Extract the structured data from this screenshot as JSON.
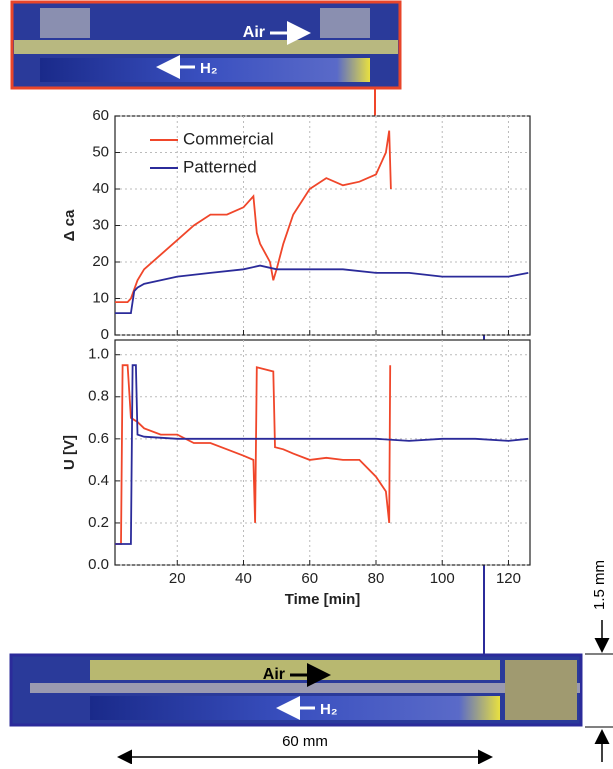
{
  "chart_data": [
    {
      "type": "line",
      "ylabel": "Δ ca",
      "xlim": [
        1.2,
        126.5
      ],
      "ylim": [
        0,
        60
      ],
      "yticks": [
        0,
        10,
        20,
        30,
        40,
        50,
        60
      ],
      "xticks": [
        20,
        40,
        60,
        80,
        100,
        120
      ],
      "xtick_labels": false,
      "grid": true,
      "legend": "upper left",
      "series": [
        {
          "name": "Commercial",
          "color": "#f0462a",
          "x": [
            1.2,
            5,
            6,
            8,
            10,
            15,
            20,
            25,
            30,
            35,
            40,
            43,
            44,
            45,
            48,
            49,
            50,
            52,
            55,
            60,
            65,
            70,
            75,
            80,
            83,
            84,
            84.5
          ],
          "values": [
            9,
            9,
            10,
            15,
            18,
            22,
            26,
            30,
            33,
            33,
            35,
            38,
            28,
            25,
            20,
            15,
            18,
            25,
            33,
            40,
            43,
            41,
            42,
            44,
            50,
            56,
            40
          ]
        },
        {
          "name": "Patterned",
          "color": "#2b2b9a",
          "x": [
            1.2,
            5,
            6,
            7,
            8,
            10,
            15,
            20,
            30,
            40,
            45,
            50,
            60,
            70,
            80,
            90,
            100,
            110,
            120,
            126
          ],
          "values": [
            6,
            6,
            6,
            12,
            13,
            14,
            15,
            16,
            17,
            18,
            19,
            18,
            18,
            18,
            17,
            17,
            16,
            16,
            16,
            17
          ]
        }
      ]
    },
    {
      "type": "line",
      "ylabel": "U [V]",
      "xlabel": "Time [min]",
      "xlim": [
        1.2,
        126.5
      ],
      "ylim": [
        0,
        1.07
      ],
      "yticks": [
        {
          "value": 0,
          "label": "0.0"
        },
        0.2,
        0.4,
        0.6,
        0.8,
        {
          "value": 1,
          "label": "1.0"
        }
      ],
      "xticks": [
        20,
        40,
        60,
        80,
        100,
        120
      ],
      "grid": true,
      "series": [
        {
          "name": "Commercial",
          "color": "#f0462a",
          "x": [
            1.2,
            3,
            3.5,
            5,
            6,
            8,
            10,
            15,
            20,
            25,
            30,
            35,
            40,
            43,
            43.5,
            44,
            49,
            49.5,
            52,
            55,
            60,
            65,
            70,
            75,
            80,
            83,
            84,
            84.3
          ],
          "values": [
            0.1,
            0.1,
            0.95,
            0.95,
            0.7,
            0.68,
            0.65,
            0.62,
            0.62,
            0.58,
            0.58,
            0.55,
            0.52,
            0.5,
            0.2,
            0.94,
            0.92,
            0.56,
            0.55,
            0.53,
            0.5,
            0.51,
            0.5,
            0.5,
            0.42,
            0.35,
            0.2,
            0.95
          ]
        },
        {
          "name": "Patterned",
          "color": "#2b2b9a",
          "x": [
            1.2,
            6,
            6.5,
            7.5,
            8,
            10,
            20,
            40,
            60,
            80,
            90,
            100,
            110,
            120,
            126
          ],
          "values": [
            0.1,
            0.1,
            0.95,
            0.95,
            0.62,
            0.61,
            0.6,
            0.6,
            0.6,
            0.6,
            0.59,
            0.6,
            0.6,
            0.59,
            0.6
          ]
        }
      ]
    }
  ],
  "images": {
    "top": {
      "air": "Air",
      "h2": "H₂"
    },
    "bottom": {
      "air": "Air",
      "h2": "H₂"
    }
  },
  "annotations": {
    "thickness": "1.5 mm",
    "length": "60 mm"
  }
}
